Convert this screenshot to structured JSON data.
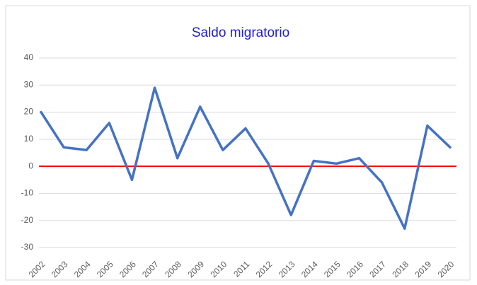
{
  "chart_data": {
    "type": "line",
    "title": "Saldo migratorio",
    "categories": [
      "2002",
      "2003",
      "2004",
      "2005",
      "2006",
      "2007",
      "2008",
      "2009",
      "2010",
      "2011",
      "2012",
      "2013",
      "2014",
      "2015",
      "2016",
      "2017",
      "2018",
      "2019",
      "2020"
    ],
    "series": [
      {
        "color": "#4472c4",
        "values": [
          20,
          7,
          6,
          16,
          -5,
          29,
          3,
          22,
          6,
          14,
          1,
          -18,
          2,
          1,
          3,
          -6,
          -23,
          15,
          7
        ]
      }
    ],
    "ylim": [
      -30,
      40
    ],
    "yticks": [
      -30,
      -20,
      -10,
      0,
      10,
      20,
      30,
      40
    ],
    "grid": true,
    "hline": {
      "y": 0,
      "color": "#ff0000"
    }
  }
}
